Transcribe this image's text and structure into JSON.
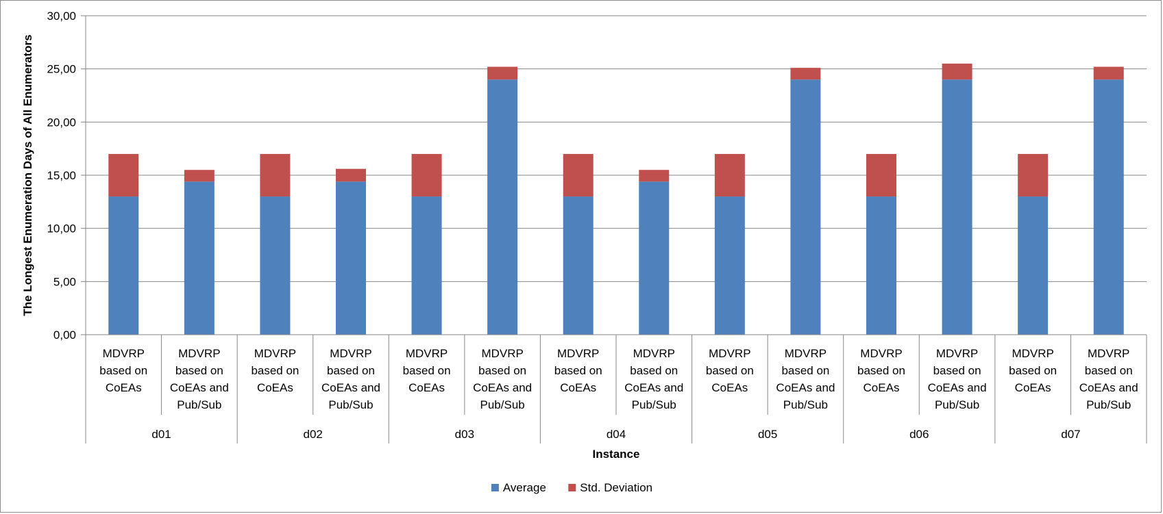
{
  "chart_data": {
    "type": "bar",
    "stacked": true,
    "title": "",
    "xlabel": "Instance",
    "ylabel": "The Longest Enumeration Days of All Enumerators",
    "ylim": [
      0,
      30
    ],
    "y_ticks": [
      "0,00",
      "5,00",
      "10,00",
      "15,00",
      "20,00",
      "25,00",
      "30,00"
    ],
    "y_tick_values": [
      0,
      5,
      10,
      15,
      20,
      25,
      30
    ],
    "grid": true,
    "legend_position": "bottom",
    "groups": [
      "d01",
      "d02",
      "d03",
      "d04",
      "d05",
      "d06",
      "d07"
    ],
    "subcategories": [
      [
        "MDVRP",
        "based on",
        "CoEAs"
      ],
      [
        "MDVRP",
        "based on",
        "CoEAs and",
        "Pub/Sub"
      ]
    ],
    "series": [
      {
        "name": "Average",
        "color": "#4F81BD",
        "values": [
          13.0,
          14.4,
          13.0,
          14.4,
          13.0,
          24.0,
          13.0,
          14.4,
          13.0,
          24.0,
          13.0,
          24.0,
          13.0,
          24.0
        ]
      },
      {
        "name": "Std. Deviation",
        "color": "#C0504D",
        "values": [
          4.0,
          1.1,
          4.0,
          1.2,
          4.0,
          1.2,
          4.0,
          1.1,
          4.0,
          1.1,
          4.0,
          1.5,
          4.0,
          1.2
        ]
      }
    ]
  }
}
